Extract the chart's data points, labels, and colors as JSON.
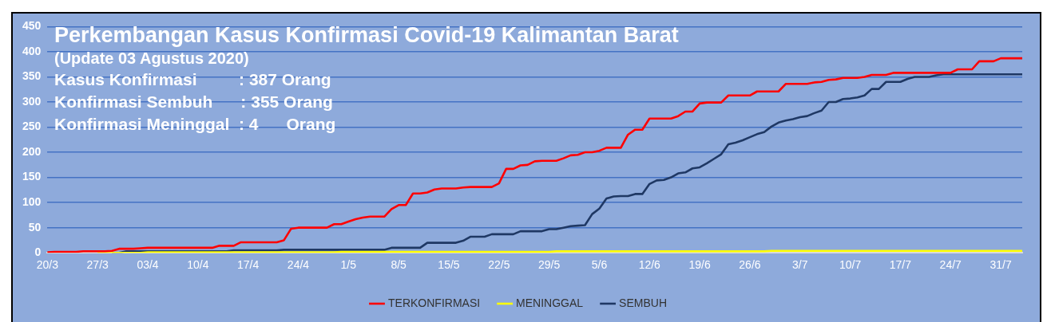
{
  "chart_data": {
    "type": "line",
    "title": "Perkembangan Kasus Konfirmasi Covid-19 Kalimantan Barat",
    "subtitle": "(Update 03 Agustus 2020)",
    "annotations": [
      "Kasus Konfirmasi         : 387 Orang",
      "Konfirmasi Sembuh      : 355 Orang",
      "Konfirmasi Meninggal  : 4      Orang"
    ],
    "categories": [
      "20/3",
      null,
      null,
      null,
      null,
      null,
      null,
      "27/3",
      null,
      null,
      null,
      null,
      null,
      null,
      "03/4",
      null,
      null,
      null,
      null,
      null,
      null,
      "10/4",
      null,
      null,
      null,
      null,
      null,
      null,
      "17/4",
      null,
      null,
      null,
      null,
      null,
      null,
      "24/4",
      null,
      null,
      null,
      null,
      null,
      null,
      "1/5",
      null,
      null,
      null,
      null,
      null,
      null,
      "8/5",
      null,
      null,
      null,
      null,
      null,
      null,
      "15/5",
      null,
      null,
      null,
      null,
      null,
      null,
      "22/5",
      null,
      null,
      null,
      null,
      null,
      null,
      "29/5",
      null,
      null,
      null,
      null,
      null,
      null,
      "5/6",
      null,
      null,
      null,
      null,
      null,
      null,
      "12/6",
      null,
      null,
      null,
      null,
      null,
      null,
      "19/6",
      null,
      null,
      null,
      null,
      null,
      null,
      "26/6",
      null,
      null,
      null,
      null,
      null,
      null,
      "3/7",
      null,
      null,
      null,
      null,
      null,
      null,
      "10/7",
      null,
      null,
      null,
      null,
      null,
      null,
      "17/7",
      null,
      null,
      null,
      null,
      null,
      null,
      "24/7",
      null,
      null,
      null,
      null,
      null,
      null,
      "31/7",
      null,
      null,
      null
    ],
    "series": [
      {
        "name": "TERKONFIRMASI",
        "color": "#ff0000",
        "values": [
          1,
          2,
          2,
          2,
          2,
          3,
          3,
          3,
          3,
          4,
          8,
          8,
          8,
          9,
          10,
          10,
          10,
          10,
          10,
          10,
          10,
          10,
          10,
          10,
          14,
          14,
          14,
          21,
          21,
          21,
          21,
          21,
          21,
          25,
          48,
          50,
          50,
          50,
          50,
          50,
          57,
          57,
          62,
          67,
          70,
          72,
          72,
          72,
          87,
          95,
          95,
          118,
          118,
          120,
          126,
          128,
          128,
          128,
          130,
          131,
          131,
          131,
          131,
          138,
          167,
          167,
          174,
          175,
          182,
          183,
          183,
          183,
          188,
          194,
          195,
          200,
          200,
          203,
          209,
          209,
          209,
          235,
          245,
          245,
          267,
          267,
          267,
          267,
          272,
          281,
          281,
          297,
          299,
          299,
          299,
          313,
          313,
          313,
          313,
          321,
          321,
          321,
          321,
          336,
          336,
          336,
          336,
          339,
          340,
          344,
          345,
          348,
          348,
          348,
          350,
          354,
          354,
          354,
          358,
          358,
          358,
          358,
          358,
          358,
          358,
          358,
          358,
          365,
          365,
          365,
          381,
          381,
          381,
          387,
          387,
          387,
          387
        ]
      },
      {
        "name": "MENINGGAL",
        "color": "#ffff00",
        "values": [
          null,
          null,
          null,
          null,
          null,
          null,
          null,
          0,
          0,
          0,
          0,
          0,
          0,
          0,
          1,
          1,
          1,
          1,
          1,
          1,
          1,
          1,
          1,
          1,
          1,
          1,
          1,
          1,
          1,
          1,
          1,
          1,
          1,
          1,
          1,
          1,
          1,
          1,
          1,
          1,
          1,
          2,
          2,
          2,
          2,
          2,
          2,
          2,
          2,
          2,
          2,
          2,
          2,
          2,
          2,
          2,
          2,
          2,
          2,
          2,
          2,
          2,
          2,
          2,
          2,
          2,
          2,
          2,
          2,
          2,
          2,
          3,
          3,
          3,
          3,
          3,
          3,
          3,
          3,
          3,
          3,
          3,
          3,
          3,
          3,
          3,
          3,
          3,
          3,
          3,
          3,
          3,
          3,
          3,
          3,
          3,
          3,
          3,
          3,
          3,
          3,
          4,
          4,
          4,
          4,
          4,
          4,
          4,
          4,
          4,
          4,
          4,
          4,
          4,
          4,
          4,
          4,
          4,
          4,
          4,
          4,
          4,
          4,
          4,
          4,
          4,
          4,
          4,
          4,
          4,
          4,
          4,
          4,
          4,
          4,
          4,
          4
        ]
      },
      {
        "name": "SEMBUH",
        "color": "#1f3864",
        "values": [
          null,
          null,
          null,
          null,
          null,
          null,
          null,
          null,
          null,
          0,
          0,
          3,
          3,
          3,
          3,
          3,
          3,
          3,
          3,
          3,
          3,
          3,
          3,
          3,
          3,
          3,
          5,
          5,
          5,
          5,
          5,
          5,
          5,
          6,
          6,
          6,
          6,
          6,
          6,
          6,
          6,
          6,
          6,
          6,
          6,
          6,
          6,
          6,
          10,
          10,
          10,
          10,
          10,
          20,
          20,
          20,
          20,
          20,
          24,
          32,
          32,
          32,
          37,
          37,
          37,
          37,
          43,
          43,
          43,
          43,
          47,
          47,
          50,
          53,
          54,
          55,
          77,
          88,
          108,
          112,
          113,
          113,
          117,
          117,
          137,
          144,
          145,
          150,
          158,
          160,
          168,
          170,
          178,
          187,
          196,
          216,
          219,
          224,
          230,
          236,
          240,
          251,
          259,
          263,
          266,
          270,
          272,
          278,
          283,
          300,
          300,
          306,
          307,
          309,
          313,
          326,
          326,
          340,
          340,
          340,
          346,
          350,
          350,
          350,
          353,
          355,
          355,
          355,
          355,
          355,
          355,
          355,
          355,
          355,
          355,
          355,
          355
        ]
      }
    ],
    "ylim": [
      0,
      450
    ],
    "yticks": [
      0,
      50,
      100,
      150,
      200,
      250,
      300,
      350,
      400,
      450
    ],
    "grid": "y",
    "legend": "bottom",
    "marker": "none",
    "line_style": "solid"
  }
}
